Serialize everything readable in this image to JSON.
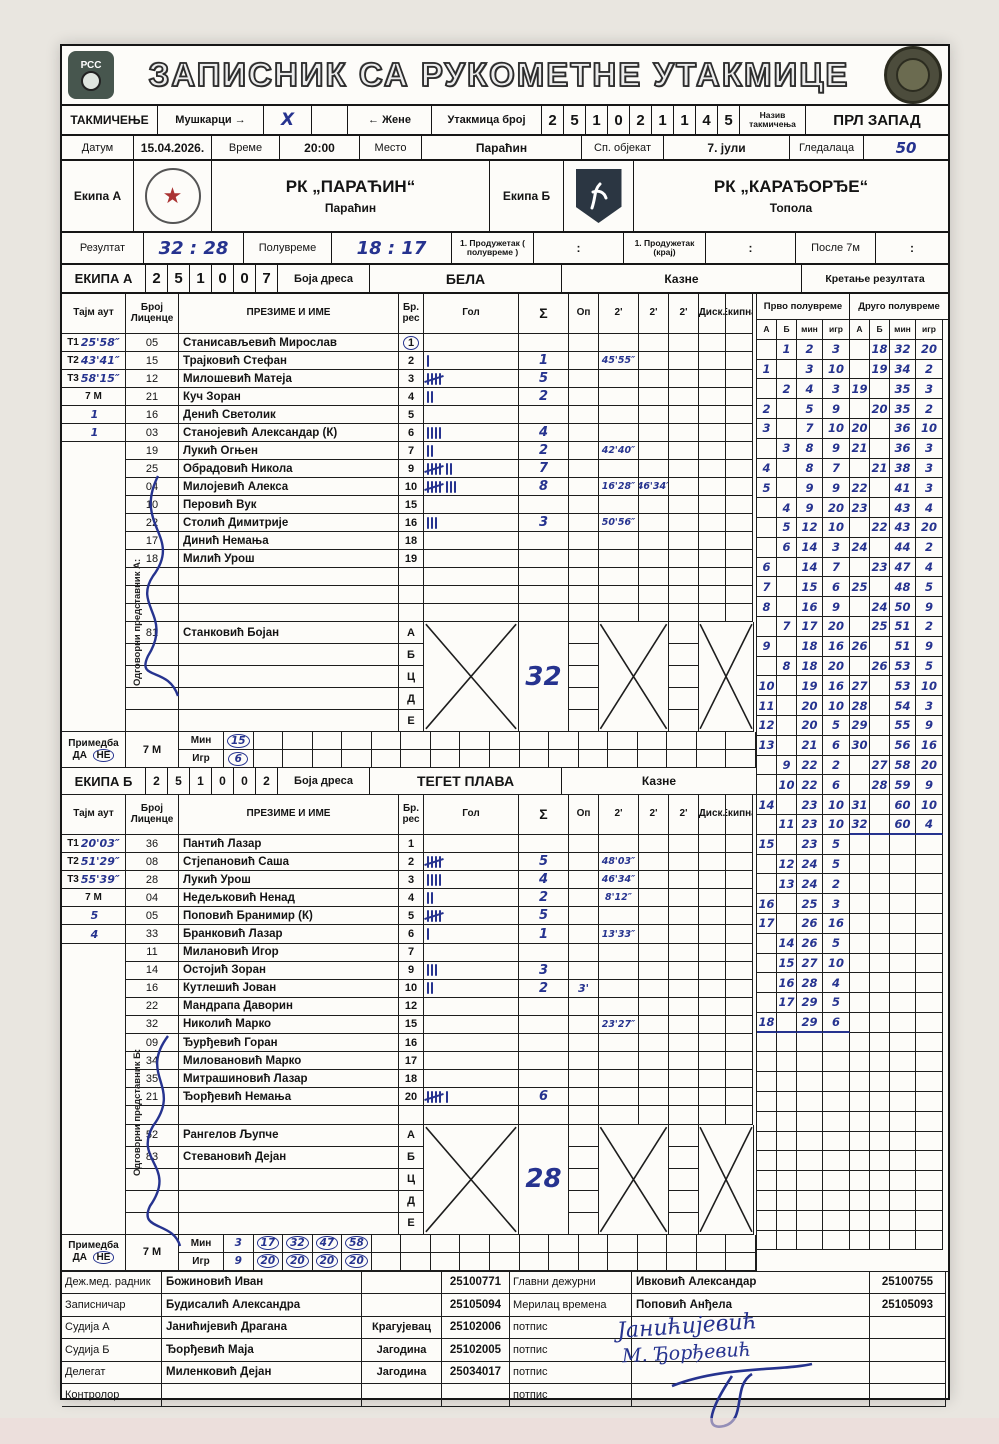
{
  "page_title": "ЗАПИСНИК СА РУКОМЕТНЕ УТАКМИЦЕ",
  "logos": {
    "left_text": "РСС",
    "left_icon": "handball-ball",
    "right_icon": "round-club-emblem"
  },
  "competition_row": {
    "label": "ТАКМИЧЕЊЕ",
    "men": "Мушкарци",
    "arrow_right": "→",
    "men_mark": "X",
    "arrow_left": "←",
    "women": "Жене",
    "match_no_label": "Утакмица број",
    "match_no_digits": [
      "2",
      "5",
      "1",
      "0",
      "2",
      "1",
      "1",
      "4",
      "5"
    ],
    "comp_name_label": "Назив такмичења",
    "comp_name": "ПРЛ ЗАПАД"
  },
  "info_row": {
    "date_label": "Датум",
    "date": "15.04.2026.",
    "time_label": "Време",
    "time": "20:00",
    "place_label": "Место",
    "place": "Параћин",
    "venue_label": "Сп. објекат",
    "venue": "7. јули",
    "spectators_label": "Гледалаца",
    "spectators": "50"
  },
  "teams_row": {
    "team_a_label": "Екипа А",
    "team_a_name": "РК „ПАРАЋИН“",
    "team_a_city": "Параћин",
    "team_b_label": "Екипа Б",
    "team_b_name": "РК „КАРАЂОРЂЕ“",
    "team_b_city": "Топола"
  },
  "result_row": {
    "label": "Резултат",
    "result": "32 : 28",
    "half_label": "Полувреме",
    "half": "18 : 17",
    "ot1_label": "1. Продужетак ( полувреме )",
    "ot1": ":",
    "ot2_label": "1. Продужетак (крај)",
    "ot2": ":",
    "p7_label": "После 7м",
    "p7": ":"
  },
  "table_headers": [
    "Тајм аут",
    "Број Лиценце",
    "ПРЕЗИМЕ И ИМЕ",
    "Бр. рес",
    "Гол",
    "Σ",
    "Оп",
    "2'",
    "2'",
    "2'",
    "Диск.",
    "Екипна"
  ],
  "score": {
    "title": "Кретање резултата",
    "half1": "Прво полувреме",
    "half2": "Друго полувреме",
    "cols": [
      "А",
      "Б",
      "мин",
      "игр"
    ],
    "rows": [
      [
        "",
        "1",
        "2",
        "3",
        "",
        "18",
        "32",
        "20"
      ],
      [
        "1",
        "",
        "3",
        "10",
        "",
        "19",
        "34",
        "2"
      ],
      [
        "",
        "2",
        "4",
        "3",
        "19",
        "",
        "35",
        "3"
      ],
      [
        "2",
        "",
        "5",
        "9",
        "",
        "20",
        "35",
        "2"
      ],
      [
        "3",
        "",
        "7",
        "10",
        "20",
        "",
        "36",
        "10"
      ],
      [
        "",
        "3",
        "8",
        "9",
        "21",
        "",
        "36",
        "3"
      ],
      [
        "4",
        "",
        "8",
        "7",
        "",
        "21",
        "38",
        "3"
      ],
      [
        "5",
        "",
        "9",
        "9",
        "22",
        "",
        "41",
        "3"
      ],
      [
        "",
        "4",
        "9",
        "20",
        "23",
        "",
        "43",
        "4"
      ],
      [
        "",
        "5",
        "12",
        "10",
        "",
        "22",
        "43",
        "20"
      ],
      [
        "",
        "6",
        "14",
        "3",
        "24",
        "",
        "44",
        "2"
      ],
      [
        "6",
        "",
        "14",
        "7",
        "",
        "23",
        "47",
        "4"
      ],
      [
        "7",
        "",
        "15",
        "6",
        "25",
        "",
        "48",
        "5"
      ],
      [
        "8",
        "",
        "16",
        "9",
        "",
        "24",
        "50",
        "9"
      ],
      [
        "",
        "7",
        "17",
        "20",
        "",
        "25",
        "51",
        "2"
      ],
      [
        "9",
        "",
        "18",
        "16",
        "26",
        "",
        "51",
        "9"
      ],
      [
        "",
        "8",
        "18",
        "20",
        "",
        "26",
        "53",
        "5"
      ],
      [
        "10",
        "",
        "19",
        "16",
        "27",
        "",
        "53",
        "10"
      ],
      [
        "11",
        "",
        "20",
        "10",
        "28",
        "",
        "54",
        "3"
      ],
      [
        "12",
        "",
        "20",
        "5",
        "29",
        "",
        "55",
        "9"
      ],
      [
        "13",
        "",
        "21",
        "6",
        "30",
        "",
        "56",
        "16"
      ],
      [
        "",
        "9",
        "22",
        "2",
        "",
        "27",
        "58",
        "20"
      ],
      [
        "",
        "10",
        "22",
        "6",
        "",
        "28",
        "59",
        "9"
      ],
      [
        "14",
        "",
        "23",
        "10",
        "31",
        "",
        "60",
        "10"
      ],
      [
        "",
        "11",
        "23",
        "10",
        "32",
        "",
        "60",
        "4"
      ],
      [
        "15",
        "",
        "23",
        "5",
        "",
        "",
        "",
        ""
      ],
      [
        "",
        "12",
        "24",
        "5",
        "",
        "",
        "",
        ""
      ],
      [
        "",
        "13",
        "24",
        "2",
        "",
        "",
        "",
        ""
      ],
      [
        "16",
        "",
        "25",
        "3",
        "",
        "",
        "",
        ""
      ],
      [
        "17",
        "",
        "26",
        "16",
        "",
        "",
        "",
        ""
      ],
      [
        "",
        "14",
        "26",
        "5",
        "",
        "",
        "",
        ""
      ],
      [
        "",
        "15",
        "27",
        "10",
        "",
        "",
        "",
        ""
      ],
      [
        "",
        "16",
        "28",
        "4",
        "",
        "",
        "",
        ""
      ],
      [
        "",
        "17",
        "29",
        "5",
        "",
        "",
        "",
        ""
      ],
      [
        "18",
        "",
        "29",
        "6",
        "",
        "",
        "",
        ""
      ]
    ],
    "empty_rows_after": 11,
    "first_half_end_row": 35,
    "second_half_end_row": 25
  },
  "team_a": {
    "band_label": "ЕКИПА А",
    "code_digits": [
      "2",
      "5",
      "1",
      "0",
      "0",
      "7"
    ],
    "dress_label": "Боја дреса",
    "dress_color": "БЕЛА",
    "kazne_label": "Казне",
    "rep_label": "Одговорни представник А:",
    "players": [
      {
        "to_label": "Т1",
        "to_value": "25'58″",
        "lic": "05",
        "name": "Станисављевић Мирослав",
        "num": "1",
        "num_circled": true,
        "tally": 0,
        "sum": "",
        "op": "",
        "p2a": "",
        "p2b": "",
        "p2c": "",
        "disk": "",
        "ekipna": ""
      },
      {
        "to_label": "Т2",
        "to_value": "43'41″",
        "lic": "15",
        "name": "Трајковић Стефан",
        "num": "2",
        "tally": 1,
        "sum": "1",
        "op": "",
        "p2a": "45'55″",
        "p2b": "",
        "p2c": "",
        "disk": "",
        "ekipna": ""
      },
      {
        "to_label": "Т3",
        "to_value": "58'15″",
        "lic": "12",
        "name": "Милошевић Матеја",
        "num": "3",
        "tally": 5,
        "sum": "5",
        "op": "",
        "p2a": "",
        "p2b": "",
        "p2c": "",
        "disk": "",
        "ekipna": ""
      },
      {
        "to_label": "7 М",
        "to_value": "",
        "lic": "21",
        "name": "Куч Зоран",
        "num": "4",
        "tally": 2,
        "sum": "2",
        "op": "",
        "p2a": "",
        "p2b": "",
        "p2c": "",
        "disk": "",
        "ekipna": ""
      },
      {
        "to_label": "",
        "to_value": "1",
        "lic": "16",
        "name": "Денић Светолик",
        "num": "5",
        "tally": 0,
        "sum": "",
        "op": "",
        "p2a": "",
        "p2b": "",
        "p2c": "",
        "disk": "",
        "ekipna": ""
      },
      {
        "to_label": "",
        "to_value": "1",
        "lic": "03",
        "name": "Станојевић Александар (К)",
        "num": "6",
        "tally": 4,
        "sum": "4",
        "op": "",
        "p2a": "",
        "p2b": "",
        "p2c": "",
        "disk": "",
        "ekipna": ""
      },
      {
        "to_label": "",
        "to_value": "",
        "lic": "19",
        "name": "Лукић Огњен",
        "num": "7",
        "tally": 2,
        "sum": "2",
        "op": "",
        "p2a": "42'40″",
        "p2b": "",
        "p2c": "",
        "disk": "",
        "ekipna": ""
      },
      {
        "to_label": "",
        "to_value": "",
        "lic": "25",
        "name": "Обрадовић Никола",
        "num": "9",
        "tally": 7,
        "sum": "7",
        "op": "",
        "p2a": "",
        "p2b": "",
        "p2c": "",
        "disk": "",
        "ekipna": ""
      },
      {
        "to_label": "",
        "to_value": "",
        "lic": "04",
        "name": "Милојевић Алекса",
        "num": "10",
        "tally": 8,
        "sum": "8",
        "op": "",
        "p2a": "16'28″",
        "p2b": "46'34″",
        "p2c": "",
        "disk": "",
        "ekipna": ""
      },
      {
        "to_label": "",
        "to_value": "",
        "lic": "10",
        "name": "Перовић Вук",
        "num": "15",
        "tally": 0,
        "sum": "",
        "op": "",
        "p2a": "",
        "p2b": "",
        "p2c": "",
        "disk": "",
        "ekipna": ""
      },
      {
        "to_label": "",
        "to_value": "",
        "lic": "22",
        "name": "Столић Димитрије",
        "num": "16",
        "tally": 3,
        "sum": "3",
        "op": "",
        "p2a": "50'56″",
        "p2b": "",
        "p2c": "",
        "disk": "",
        "ekipna": ""
      },
      {
        "to_label": "",
        "to_value": "",
        "lic": "17",
        "name": "Динић Немања",
        "num": "18",
        "tally": 0,
        "sum": "",
        "op": "",
        "p2a": "",
        "p2b": "",
        "p2c": "",
        "disk": "",
        "ekipna": ""
      },
      {
        "to_label": "",
        "to_value": "",
        "lic": "18",
        "name": "Милић Урош",
        "num": "19",
        "tally": 0,
        "sum": "",
        "op": "",
        "p2a": "",
        "p2b": "",
        "p2c": "",
        "disk": "",
        "ekipna": ""
      },
      {
        "to_label": "",
        "to_value": "",
        "lic": "",
        "name": "",
        "num": "",
        "tally": 0,
        "sum": "",
        "op": "",
        "p2a": "",
        "p2b": "",
        "p2c": "",
        "disk": "",
        "ekipna": ""
      },
      {
        "to_label": "",
        "to_value": "",
        "lic": "",
        "name": "",
        "num": "",
        "tally": 0,
        "sum": "",
        "op": "",
        "p2a": "",
        "p2b": "",
        "p2c": "",
        "disk": "",
        "ekipna": ""
      },
      {
        "to_label": "",
        "to_value": "",
        "lic": "",
        "name": "",
        "num": "",
        "tally": 0,
        "sum": "",
        "op": "",
        "p2a": "",
        "p2b": "",
        "p2c": "",
        "disk": "",
        "ekipna": ""
      }
    ],
    "gk": {
      "lic": "81",
      "name": "Станковић Бојан",
      "letters": [
        "А",
        "Б",
        "Ц",
        "Д",
        "Е"
      ],
      "sum": "32"
    },
    "primedba": {
      "label": "Примедба",
      "da": "ДА",
      "ne": "НЕ",
      "ne_circled": true,
      "m7": "7 М",
      "min_label": "Мин",
      "igr_label": "Игр",
      "min": [
        "15"
      ],
      "igr": [
        "6"
      ],
      "circled_from": 0
    }
  },
  "team_b": {
    "band_label": "ЕКИПА Б",
    "code_digits": [
      "2",
      "5",
      "1",
      "0",
      "0",
      "2"
    ],
    "dress_label": "Боја дреса",
    "dress_color": "ТЕГЕТ ПЛАВА",
    "kazne_label": "Казне",
    "rep_label": "Одговорни представник Б:",
    "players": [
      {
        "to_label": "Т1",
        "to_value": "20'03″",
        "lic": "36",
        "name": "Пантић Лазар",
        "num": "1",
        "tally": 0,
        "sum": "",
        "op": "",
        "p2a": "",
        "p2b": "",
        "p2c": "",
        "disk": "",
        "ekipna": ""
      },
      {
        "to_label": "Т2",
        "to_value": "51'29″",
        "lic": "08",
        "name": "Стјепановић Саша",
        "num": "2",
        "tally": 5,
        "sum": "5",
        "op": "",
        "p2a": "48'03″",
        "p2b": "",
        "p2c": "",
        "disk": "",
        "ekipna": ""
      },
      {
        "to_label": "Т3",
        "to_value": "55'39″",
        "lic": "28",
        "name": "Лукић Урош",
        "num": "3",
        "tally": 4,
        "sum": "4",
        "op": "",
        "p2a": "46'34″",
        "p2b": "",
        "p2c": "",
        "disk": "",
        "ekipna": ""
      },
      {
        "to_label": "7 М",
        "to_value": "",
        "lic": "04",
        "name": "Недељковић Ненад",
        "num": "4",
        "tally": 2,
        "sum": "2",
        "op": "",
        "p2a": "8'12″",
        "p2b": "",
        "p2c": "",
        "disk": "",
        "ekipna": ""
      },
      {
        "to_label": "",
        "to_value": "5",
        "lic": "05",
        "name": "Поповић Бранимир (К)",
        "num": "5",
        "tally": 5,
        "sum": "5",
        "op": "",
        "p2a": "",
        "p2b": "",
        "p2c": "",
        "disk": "",
        "ekipna": ""
      },
      {
        "to_label": "",
        "to_value": "4",
        "lic": "33",
        "name": "Бранковић Лазар",
        "num": "6",
        "tally": 1,
        "sum": "1",
        "op": "",
        "p2a": "13'33″",
        "p2b": "",
        "p2c": "",
        "disk": "",
        "ekipna": ""
      },
      {
        "to_label": "",
        "to_value": "",
        "lic": "11",
        "name": "Милановић Игор",
        "num": "7",
        "tally": 0,
        "sum": "",
        "op": "",
        "p2a": "",
        "p2b": "",
        "p2c": "",
        "disk": "",
        "ekipna": ""
      },
      {
        "to_label": "",
        "to_value": "",
        "lic": "14",
        "name": "Остојић Зоран",
        "num": "9",
        "tally": 3,
        "sum": "3",
        "op": "",
        "p2a": "",
        "p2b": "",
        "p2c": "",
        "disk": "",
        "ekipna": ""
      },
      {
        "to_label": "",
        "to_value": "",
        "lic": "16",
        "name": "Кутлешић Јован",
        "num": "10",
        "tally": 2,
        "sum": "2",
        "op": "3'",
        "p2a": "",
        "p2b": "",
        "p2c": "",
        "disk": "",
        "ekipna": ""
      },
      {
        "to_label": "",
        "to_value": "",
        "lic": "22",
        "name": "Мандрапа Даворин",
        "num": "12",
        "tally": 0,
        "sum": "",
        "op": "",
        "p2a": "",
        "p2b": "",
        "p2c": "",
        "disk": "",
        "ekipna": ""
      },
      {
        "to_label": "",
        "to_value": "",
        "lic": "32",
        "name": "Николић Марко",
        "num": "15",
        "tally": 0,
        "sum": "",
        "op": "",
        "p2a": "23'27″",
        "p2b": "",
        "p2c": "",
        "disk": "",
        "ekipna": ""
      },
      {
        "to_label": "",
        "to_value": "",
        "lic": "09",
        "name": "Ђурђевић Горан",
        "num": "16",
        "tally": 0,
        "sum": "",
        "op": "",
        "p2a": "",
        "p2b": "",
        "p2c": "",
        "disk": "",
        "ekipna": ""
      },
      {
        "to_label": "",
        "to_value": "",
        "lic": "34",
        "name": "Миловановић Марко",
        "num": "17",
        "tally": 0,
        "sum": "",
        "op": "",
        "p2a": "",
        "p2b": "",
        "p2c": "",
        "disk": "",
        "ekipna": ""
      },
      {
        "to_label": "",
        "to_value": "",
        "lic": "35",
        "name": "Митрашиновић Лазар",
        "num": "18",
        "tally": 0,
        "sum": "",
        "op": "",
        "p2a": "",
        "p2b": "",
        "p2c": "",
        "disk": "",
        "ekipna": ""
      },
      {
        "to_label": "",
        "to_value": "",
        "lic": "21",
        "name": "Ђорђевић Немања",
        "num": "20",
        "tally": 6,
        "sum": "6",
        "op": "",
        "p2a": "",
        "p2b": "",
        "p2c": "",
        "disk": "",
        "ekipna": ""
      },
      {
        "to_label": "",
        "to_value": "",
        "lic": "",
        "name": "",
        "num": "",
        "tally": 0,
        "sum": "",
        "op": "",
        "p2a": "",
        "p2b": "",
        "p2c": "",
        "disk": "",
        "ekipna": ""
      }
    ],
    "gk": {
      "lic": "52",
      "name": "Рангелов Љупче",
      "lic2": "83",
      "name2": "Стевановић Дејан",
      "letters": [
        "А",
        "Б",
        "Ц",
        "Д",
        "Е"
      ],
      "sum": "28"
    },
    "primedba": {
      "label": "Примедба",
      "da": "ДА",
      "ne": "НЕ",
      "ne_circled": true,
      "m7": "7 М",
      "min_label": "Мин",
      "igr_label": "Игр",
      "min": [
        "3",
        "17",
        "32",
        "47",
        "58"
      ],
      "igr": [
        "9",
        "20",
        "20",
        "20",
        "20"
      ],
      "circled_from": 1
    }
  },
  "officials": {
    "rows": [
      {
        "role": "Деж.мед. радник",
        "name": "Божиновић Иван",
        "city": "",
        "id": "25100771",
        "role2": "Главни дежурни",
        "name2": "Ивковић Александар",
        "id2": "25100755"
      },
      {
        "role": "Записничар",
        "name": "Будисалић Александра",
        "city": "",
        "id": "25105094",
        "role2": "Мерилац времена",
        "name2": "Поповић Анђела",
        "id2": "25105093"
      },
      {
        "role": "Судија А",
        "name": "Јанићијевић Драгана",
        "city": "Крагујевац",
        "id": "25102006",
        "role2": "потпис",
        "name2": "",
        "id2": ""
      },
      {
        "role": "Судија Б",
        "name": "Ђорђевић Маја",
        "city": "Јагодина",
        "id": "25102005",
        "role2": "потпис",
        "name2": "",
        "id2": ""
      },
      {
        "role": "Делегат",
        "name": "Миленковић Дејан",
        "city": "Јагодина",
        "id": "25034017",
        "role2": "потпис",
        "name2": "",
        "id2": ""
      },
      {
        "role": "Контролор",
        "name": "",
        "city": "",
        "id": "",
        "role2": "потпис",
        "name2": "",
        "id2": ""
      }
    ],
    "signature_a": "Јанићијевић",
    "signature_b": "М. Ђорђевић"
  }
}
